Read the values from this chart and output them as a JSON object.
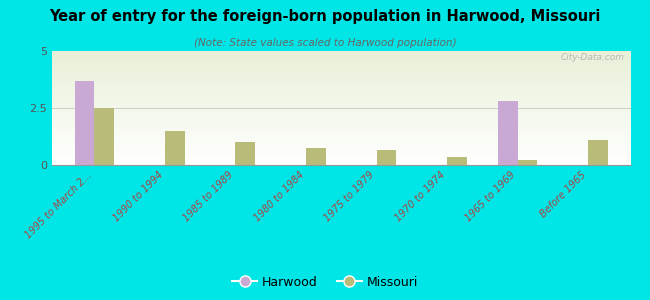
{
  "title": "Year of entry for the foreign-born population in Harwood, Missouri",
  "subtitle": "(Note: State values scaled to Harwood population)",
  "categories": [
    "1995 to March 2...",
    "1990 to 1994",
    "1985 to 1989",
    "1980 to 1984",
    "1975 to 1979",
    "1970 to 1974",
    "1965 to 1969",
    "Before 1965"
  ],
  "harwood_values": [
    3.7,
    0,
    0,
    0,
    0,
    0,
    2.8,
    0
  ],
  "missouri_values": [
    2.5,
    1.5,
    1.0,
    0.75,
    0.65,
    0.35,
    0.2,
    1.1
  ],
  "harwood_color": "#c9a8d4",
  "missouri_color": "#b8bc78",
  "background_color": "#00e5e5",
  "ylim": [
    0,
    5
  ],
  "yticks": [
    0,
    2.5,
    5
  ],
  "bar_width": 0.28,
  "legend_harwood": "Harwood",
  "legend_missouri": "Missouri",
  "watermark": "City-Data.com",
  "tick_label_color": "#aa4444",
  "ytick_color": "#555555"
}
